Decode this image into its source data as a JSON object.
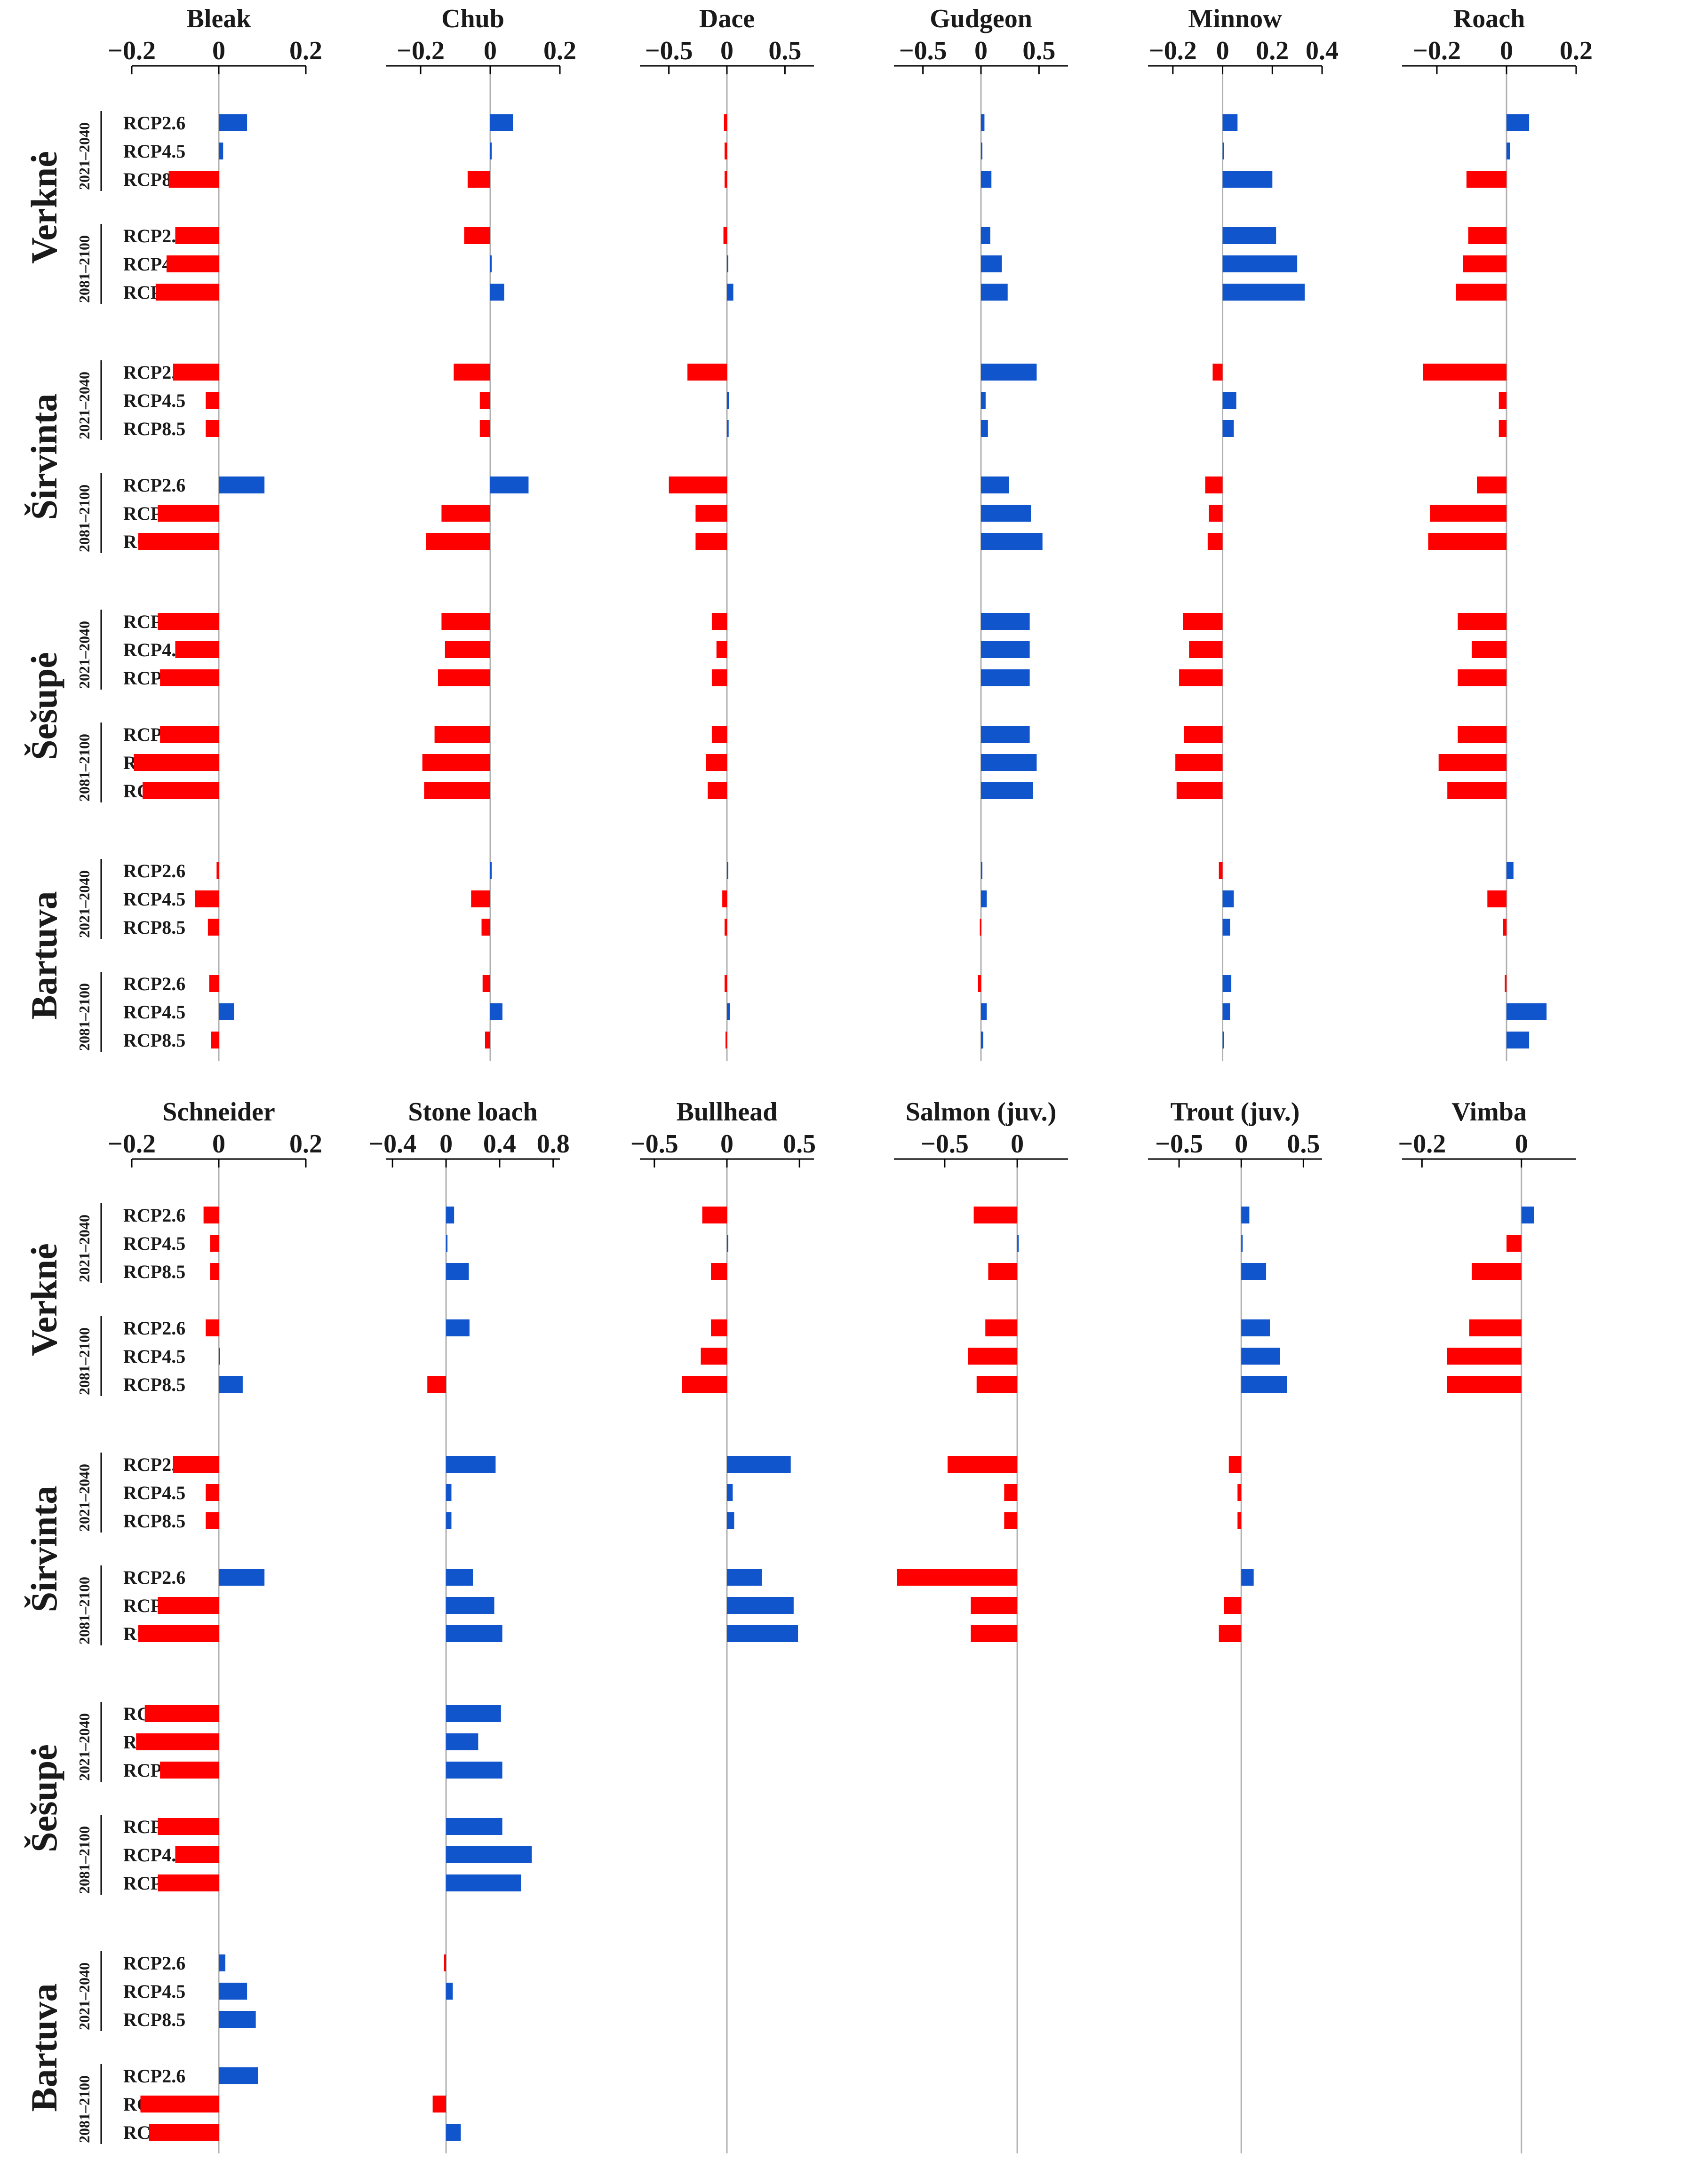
{
  "chart_data": {
    "type": "bar",
    "orientation": "horizontal",
    "rivers": [
      "Verknė",
      "Širvinta",
      "Šešupė",
      "Bartuva"
    ],
    "periods": [
      "2021–2040",
      "2081–2100"
    ],
    "scenarios": [
      "RCP2.6",
      "RCP4.5",
      "RCP8.5"
    ],
    "colors": {
      "positive": "#1155cc",
      "negative": "#ff0000",
      "axis": "#000000",
      "zeroline": "#b0b0b0"
    },
    "panels": [
      {
        "name": "Bleak",
        "range": [
          -0.2,
          0.2
        ],
        "ticks": [
          -0.2,
          0,
          0.2
        ],
        "tick_labels": [
          "−0.2",
          "0",
          "0.2"
        ],
        "values": {
          "Verknė": [
            0.065,
            0.01,
            -0.115,
            -0.1,
            -0.12,
            -0.145
          ],
          "Širvinta": [
            -0.105,
            -0.03,
            -0.03,
            0.105,
            -0.14,
            -0.185
          ],
          "Šešupė": [
            -0.14,
            -0.1,
            -0.135,
            -0.135,
            -0.195,
            -0.175
          ],
          "Bartuva": [
            -0.005,
            -0.055,
            -0.025,
            -0.022,
            0.035,
            -0.018
          ]
        }
      },
      {
        "name": "Chub",
        "range": [
          -0.3,
          0.2
        ],
        "ticks": [
          -0.2,
          0,
          0.2
        ],
        "tick_labels": [
          "−0.2",
          "0",
          "0.2"
        ],
        "values": {
          "Verknė": [
            0.065,
            0.003,
            -0.065,
            -0.075,
            0.003,
            0.04
          ],
          "Širvinta": [
            -0.105,
            -0.03,
            -0.03,
            0.11,
            -0.14,
            -0.185
          ],
          "Šešupė": [
            -0.14,
            -0.13,
            -0.15,
            -0.16,
            -0.195,
            -0.19
          ],
          "Bartuva": [
            0.003,
            -0.055,
            -0.025,
            -0.022,
            0.035,
            -0.015
          ]
        }
      },
      {
        "name": "Dace",
        "range": [
          -0.75,
          0.75
        ],
        "ticks": [
          -0.5,
          0,
          0.5
        ],
        "tick_labels": [
          "−0.5",
          "0",
          "0.5"
        ],
        "values": {
          "Verknė": [
            -0.025,
            -0.02,
            -0.02,
            -0.03,
            0.003,
            0.055
          ],
          "Širvinta": [
            -0.34,
            0.02,
            0.015,
            -0.5,
            -0.27,
            -0.27
          ],
          "Šešupė": [
            -0.13,
            -0.09,
            -0.13,
            -0.13,
            -0.18,
            -0.165
          ],
          "Bartuva": [
            0.003,
            -0.04,
            -0.02,
            -0.02,
            0.025,
            -0.012
          ]
        }
      },
      {
        "name": "Gudgeon",
        "range": [
          -0.75,
          0.75
        ],
        "ticks": [
          -0.5,
          0,
          0.5
        ],
        "tick_labels": [
          "−0.5",
          "0",
          "0.5"
        ],
        "values": {
          "Verknė": [
            0.03,
            0.01,
            0.09,
            0.08,
            0.18,
            0.23
          ],
          "Širvinta": [
            0.48,
            0.04,
            0.06,
            0.24,
            0.43,
            0.53
          ],
          "Šešupė": [
            0.42,
            0.42,
            0.42,
            0.42,
            0.48,
            0.45
          ],
          "Bartuva": [
            0.003,
            0.05,
            -0.01,
            -0.025,
            0.05,
            0.02
          ]
        }
      },
      {
        "name": "Minnow",
        "range": [
          -0.3,
          0.4
        ],
        "ticks": [
          -0.2,
          0,
          0.2,
          0.4
        ],
        "tick_labels": [
          "−0.2",
          "0",
          "0.2",
          "0.4"
        ],
        "values": {
          "Verknė": [
            0.06,
            0.005,
            0.2,
            0.215,
            0.3,
            0.33
          ],
          "Širvinta": [
            -0.04,
            0.055,
            0.045,
            -0.07,
            -0.055,
            -0.06
          ],
          "Šešupė": [
            -0.16,
            -0.135,
            -0.175,
            -0.155,
            -0.19,
            -0.185
          ],
          "Bartuva": [
            -0.015,
            0.045,
            0.03,
            0.035,
            0.03,
            0.003
          ]
        }
      },
      {
        "name": "Roach",
        "range": [
          -0.3,
          0.2
        ],
        "ticks": [
          -0.2,
          0,
          0.2
        ],
        "tick_labels": [
          "−0.2",
          "0",
          "0.2"
        ],
        "values": {
          "Verknė": [
            0.065,
            0.01,
            -0.115,
            -0.11,
            -0.125,
            -0.145
          ],
          "Širvinta": [
            -0.24,
            -0.022,
            -0.022,
            -0.085,
            -0.22,
            -0.225
          ],
          "Šešupė": [
            -0.14,
            -0.1,
            -0.14,
            -0.14,
            -0.195,
            -0.17
          ],
          "Bartuva": [
            0.02,
            -0.055,
            -0.01,
            -0.005,
            0.115,
            0.065
          ]
        }
      },
      {
        "name": "Schneider",
        "range": [
          -0.2,
          0.2
        ],
        "ticks": [
          -0.2,
          0,
          0.2
        ],
        "tick_labels": [
          "−0.2",
          "0",
          "0.2"
        ],
        "values": {
          "Verknė": [
            -0.035,
            -0.02,
            -0.02,
            -0.03,
            0.003,
            0.055
          ],
          "Širvinta": [
            -0.105,
            -0.03,
            -0.03,
            0.105,
            -0.14,
            -0.185
          ],
          "Šešupė": [
            -0.17,
            -0.19,
            -0.135,
            -0.14,
            -0.1,
            -0.14
          ],
          "Bartuva": [
            0.015,
            0.065,
            0.085,
            0.09,
            -0.18,
            -0.16
          ]
        }
      },
      {
        "name": "Stone loach",
        "range": [
          -0.45,
          0.85
        ],
        "ticks": [
          -0.4,
          0,
          0.4,
          0.8
        ],
        "tick_labels": [
          "−0.4",
          "0",
          "0.4",
          "0.8"
        ],
        "values": {
          "Verknė": [
            0.06,
            0.005,
            0.17,
            0.175,
            null,
            -0.14
          ],
          "Širvinta": [
            0.37,
            0.04,
            0.04,
            0.2,
            0.36,
            0.42
          ],
          "Šešupė": [
            0.41,
            0.24,
            0.42,
            0.42,
            0.64,
            0.56
          ],
          "Bartuva": [
            -0.015,
            0.05,
            null,
            null,
            -0.1,
            0.11
          ]
        }
      },
      {
        "name": "Bullhead",
        "range": [
          -0.6,
          0.6
        ],
        "ticks": [
          -0.5,
          0,
          0.5
        ],
        "tick_labels": [
          "−0.5",
          "0",
          "0.5"
        ],
        "values": {
          "Verknė": [
            -0.17,
            0.005,
            -0.11,
            -0.11,
            -0.18,
            -0.31
          ],
          "Širvinta": [
            0.44,
            0.04,
            0.05,
            0.24,
            0.46,
            0.49
          ],
          "Šešupė": [
            null,
            null,
            null,
            null,
            null,
            null
          ],
          "Bartuva": [
            null,
            null,
            null,
            null,
            null,
            null
          ]
        }
      },
      {
        "name": "Salmon (juv.)",
        "range": [
          -0.85,
          0.35
        ],
        "ticks": [
          -0.5,
          0
        ],
        "tick_labels": [
          "−0.5",
          "0"
        ],
        "values": {
          "Verknė": [
            -0.3,
            0.01,
            -0.2,
            -0.22,
            -0.34,
            -0.28
          ],
          "Širvinta": [
            -0.48,
            -0.09,
            -0.09,
            -0.83,
            -0.32,
            -0.32
          ],
          "Šešupė": [
            null,
            null,
            null,
            null,
            null,
            null
          ],
          "Bartuva": [
            null,
            null,
            null,
            null,
            null,
            null
          ]
        }
      },
      {
        "name": "Trout (juv.)",
        "range": [
          -0.75,
          0.65
        ],
        "ticks": [
          -0.5,
          0,
          0.5
        ],
        "tick_labels": [
          "−0.5",
          "0",
          "0.5"
        ],
        "values": {
          "Verknė": [
            0.065,
            0.01,
            0.2,
            0.23,
            0.31,
            0.37
          ],
          "Širvinta": [
            -0.1,
            -0.03,
            -0.03,
            0.1,
            -0.14,
            -0.18
          ],
          "Šešupė": [
            null,
            null,
            null,
            null,
            null,
            null
          ],
          "Bartuva": [
            null,
            null,
            null,
            null,
            null,
            null
          ]
        }
      },
      {
        "name": "Vimba",
        "range": [
          -0.24,
          0.11
        ],
        "ticks": [
          -0.2,
          0
        ],
        "tick_labels": [
          "−0.2",
          "0"
        ],
        "values": {
          "Verknė": [
            0.025,
            -0.03,
            -0.1,
            -0.105,
            -0.15,
            -0.15
          ],
          "Širvinta": [
            null,
            null,
            null,
            null,
            null,
            null
          ],
          "Šešupė": [
            null,
            null,
            null,
            null,
            null,
            null
          ],
          "Bartuva": [
            null,
            null,
            null,
            null,
            null,
            null
          ]
        }
      }
    ]
  }
}
